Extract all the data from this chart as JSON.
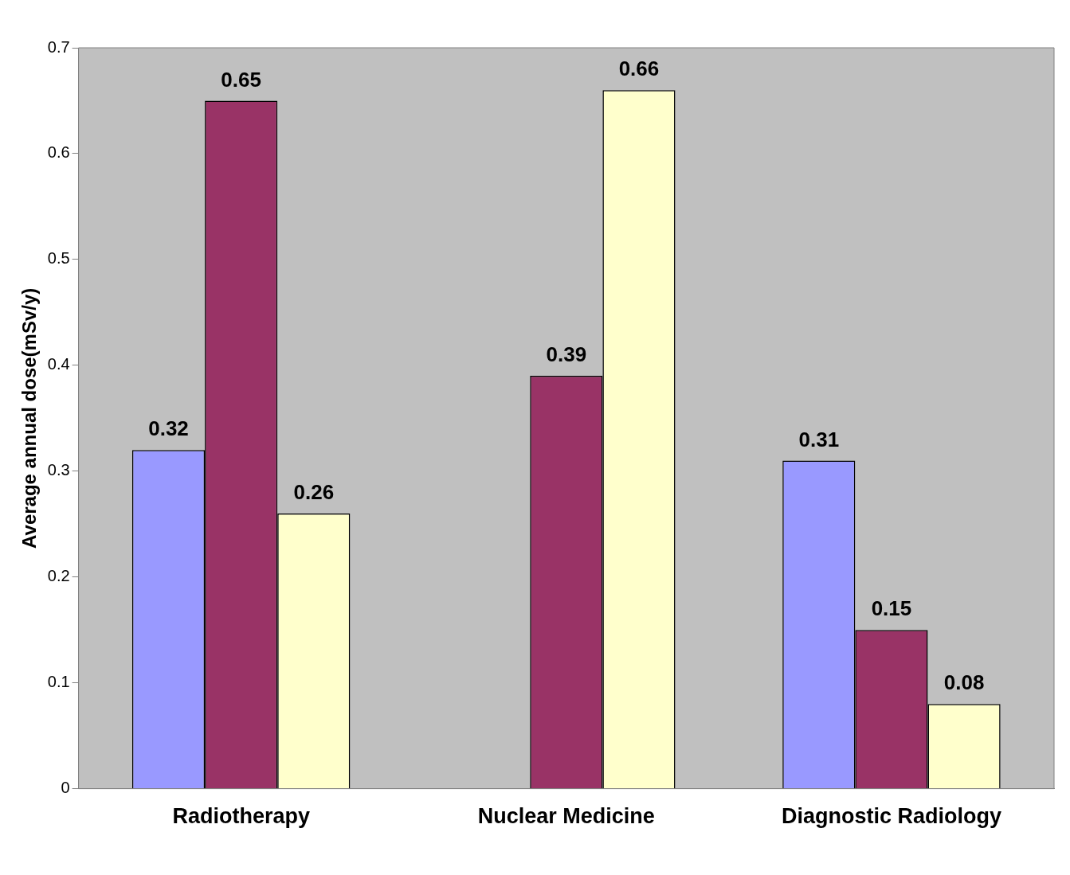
{
  "chart_data": {
    "type": "bar",
    "ylabel": "Average annual dose(mSv/y)",
    "categories": [
      "Radiotherapy",
      "Nuclear Medicine",
      "Diagnostic Radiology"
    ],
    "series": [
      {
        "color": "#9999ff",
        "values": [
          0.32,
          null,
          0.31
        ]
      },
      {
        "color": "#993366",
        "values": [
          0.65,
          0.39,
          0.15
        ]
      },
      {
        "color": "#ffffcc",
        "values": [
          0.26,
          0.66,
          0.08
        ]
      }
    ],
    "ylim": [
      0,
      0.7
    ],
    "yticks": [
      0,
      0.1,
      0.2,
      0.3,
      0.4,
      0.5,
      0.6,
      0.7
    ],
    "data_labels": true,
    "grid": false,
    "legend": false
  }
}
